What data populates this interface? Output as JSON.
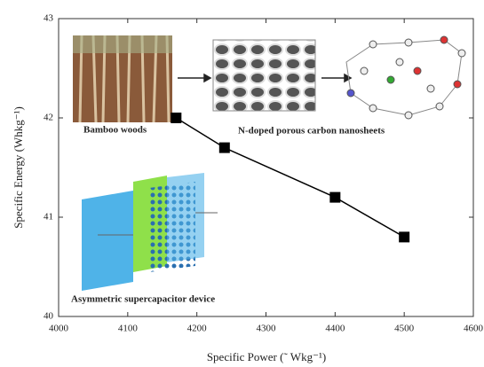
{
  "chart_data": {
    "type": "line",
    "xlabel": "Specific Power (˜ Wkg⁻¹)",
    "ylabel": "Specific Energy (Whkg⁻¹)",
    "annotations": [
      "Bamboo woods",
      "N-doped porous carbon nanosheets",
      "Asymmetric supercapacitor device"
    ],
    "x": [
      4170,
      4240,
      4400,
      4500
    ],
    "series": [
      {
        "color": "#000000",
        "values": [
          42.0,
          41.7,
          41.2,
          40.8
        ]
      }
    ],
    "xlim": [
      4000,
      4600
    ],
    "xticks": [
      4000,
      4100,
      4200,
      4300,
      4400,
      4500,
      4600
    ],
    "ylim": [
      40,
      43
    ],
    "yticks": [
      40,
      41,
      42,
      43
    ]
  }
}
